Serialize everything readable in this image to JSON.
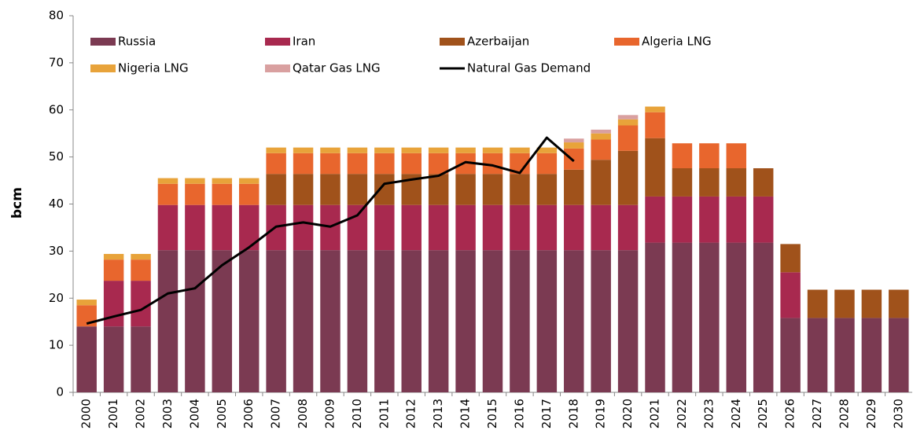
{
  "chart_data": {
    "type": "bar",
    "stacked": true,
    "y_label": "bcm",
    "categories": [
      "2000",
      "2001",
      "2002",
      "2003",
      "2004",
      "2005",
      "2006",
      "2007",
      "2008",
      "2009",
      "2010",
      "2011",
      "2012",
      "2013",
      "2014",
      "2015",
      "2016",
      "2017",
      "2018",
      "2019",
      "2020",
      "2021",
      "2022",
      "2023",
      "2024",
      "2025",
      "2026",
      "2027",
      "2028",
      "2029",
      "2030"
    ],
    "series": [
      {
        "name": "Russia",
        "color": "#7b3a52",
        "values": [
          14,
          14,
          14,
          30.2,
          30.2,
          30.2,
          30.2,
          30.2,
          30.2,
          30.2,
          30.2,
          30.2,
          30.2,
          30.2,
          30.2,
          30.2,
          30.2,
          30.2,
          30.2,
          30.2,
          30.2,
          31.8,
          31.8,
          31.8,
          31.8,
          31.8,
          15.8,
          15.8,
          15.8,
          15.8,
          15.8
        ]
      },
      {
        "name": "Iran",
        "color": "#a8294f",
        "values": [
          null,
          9.7,
          9.7,
          9.6,
          9.6,
          9.6,
          9.6,
          9.6,
          9.6,
          9.6,
          9.6,
          9.6,
          9.6,
          9.6,
          9.6,
          9.6,
          9.6,
          9.6,
          9.6,
          9.6,
          9.6,
          9.8,
          9.8,
          9.8,
          9.8,
          9.8,
          9.7,
          null,
          null,
          null,
          null
        ]
      },
      {
        "name": "Azerbaijan",
        "color": "#a0521b",
        "values": [
          null,
          null,
          null,
          null,
          null,
          null,
          null,
          6.6,
          6.6,
          6.6,
          6.6,
          6.6,
          6.6,
          6.6,
          6.6,
          6.6,
          6.6,
          6.6,
          7.5,
          9.6,
          11.5,
          12.4,
          6,
          6,
          6,
          6,
          6,
          6,
          6,
          6,
          6
        ]
      },
      {
        "name": "Algeria LNG",
        "color": "#e8662d",
        "values": [
          4.5,
          4.5,
          4.5,
          4.5,
          4.5,
          4.5,
          4.5,
          4.4,
          4.4,
          4.4,
          4.4,
          4.4,
          4.4,
          4.4,
          4.4,
          4.4,
          4.4,
          4.4,
          4.5,
          4.3,
          5.4,
          5.5,
          5.3,
          5.3,
          5.3,
          null,
          null,
          null,
          null,
          null,
          null
        ]
      },
      {
        "name": "Nigeria LNG",
        "color": "#e8a33a",
        "values": [
          1.2,
          1.2,
          1.2,
          1.2,
          1.2,
          1.2,
          1.2,
          1.2,
          1.2,
          1.2,
          1.2,
          1.2,
          1.2,
          1.2,
          1.2,
          1.2,
          1.2,
          1.2,
          1.3,
          1.3,
          1.3,
          1.2,
          null,
          null,
          null,
          null,
          null,
          null,
          null,
          null,
          null
        ]
      },
      {
        "name": "Qatar Gas LNG",
        "color": "#d9a0a0",
        "values": [
          null,
          null,
          null,
          null,
          null,
          null,
          null,
          null,
          null,
          null,
          null,
          null,
          null,
          null,
          null,
          null,
          null,
          null,
          0.8,
          0.8,
          0.9,
          null,
          null,
          null,
          null,
          null,
          null,
          null,
          null,
          null,
          null
        ]
      },
      {
        "name": "Natural Gas Demand",
        "color": "#000000",
        "type": "line",
        "values": [
          14.6,
          16.1,
          17.5,
          21,
          22.1,
          27,
          30.8,
          35.2,
          36.1,
          35.2,
          37.6,
          44.3,
          45.2,
          46,
          48.9,
          48.2,
          46.6,
          54.1,
          49.1,
          null,
          null,
          null,
          null,
          null,
          null,
          null,
          null,
          null,
          null,
          null,
          null
        ]
      }
    ],
    "ylim": [
      0,
      80
    ],
    "yticks": [
      0,
      10,
      20,
      30,
      40,
      50,
      60,
      70,
      80
    ],
    "grid": false,
    "legend": "top"
  }
}
